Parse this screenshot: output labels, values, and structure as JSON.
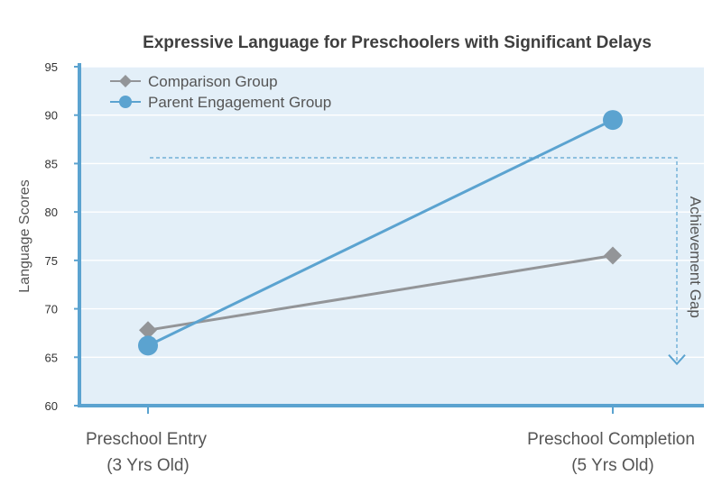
{
  "chart_data": {
    "type": "line",
    "title": "Expressive Language for Preschoolers with Significant Delays",
    "ylabel": "Language Scores",
    "xlabel": "",
    "ylim": [
      60,
      95
    ],
    "yticks": [
      60,
      65,
      70,
      75,
      80,
      85,
      90,
      95
    ],
    "grid": true,
    "legend_position": "top-left",
    "categories": [
      {
        "line1": "Preschool Entry",
        "line2": "(3 Yrs Old)"
      },
      {
        "line1": "Preschool Completion",
        "line2": "(5 Yrs Old)"
      }
    ],
    "series": [
      {
        "name": "Comparison Group",
        "values": [
          67.8,
          75.5
        ],
        "color": "#939598",
        "marker": "diamond"
      },
      {
        "name": "Parent Engagement Group",
        "values": [
          66.2,
          89.5
        ],
        "color": "#5ba3d0",
        "marker": "circle"
      }
    ],
    "annotation": {
      "text": "Achievement Gap",
      "from_value": 85.6,
      "to_value": 64.5
    },
    "colors": {
      "plot_bg": "#e3eff8",
      "grid": "#ffffff",
      "axis": "#5ba3d0",
      "guide": "#5ba3d0"
    }
  }
}
